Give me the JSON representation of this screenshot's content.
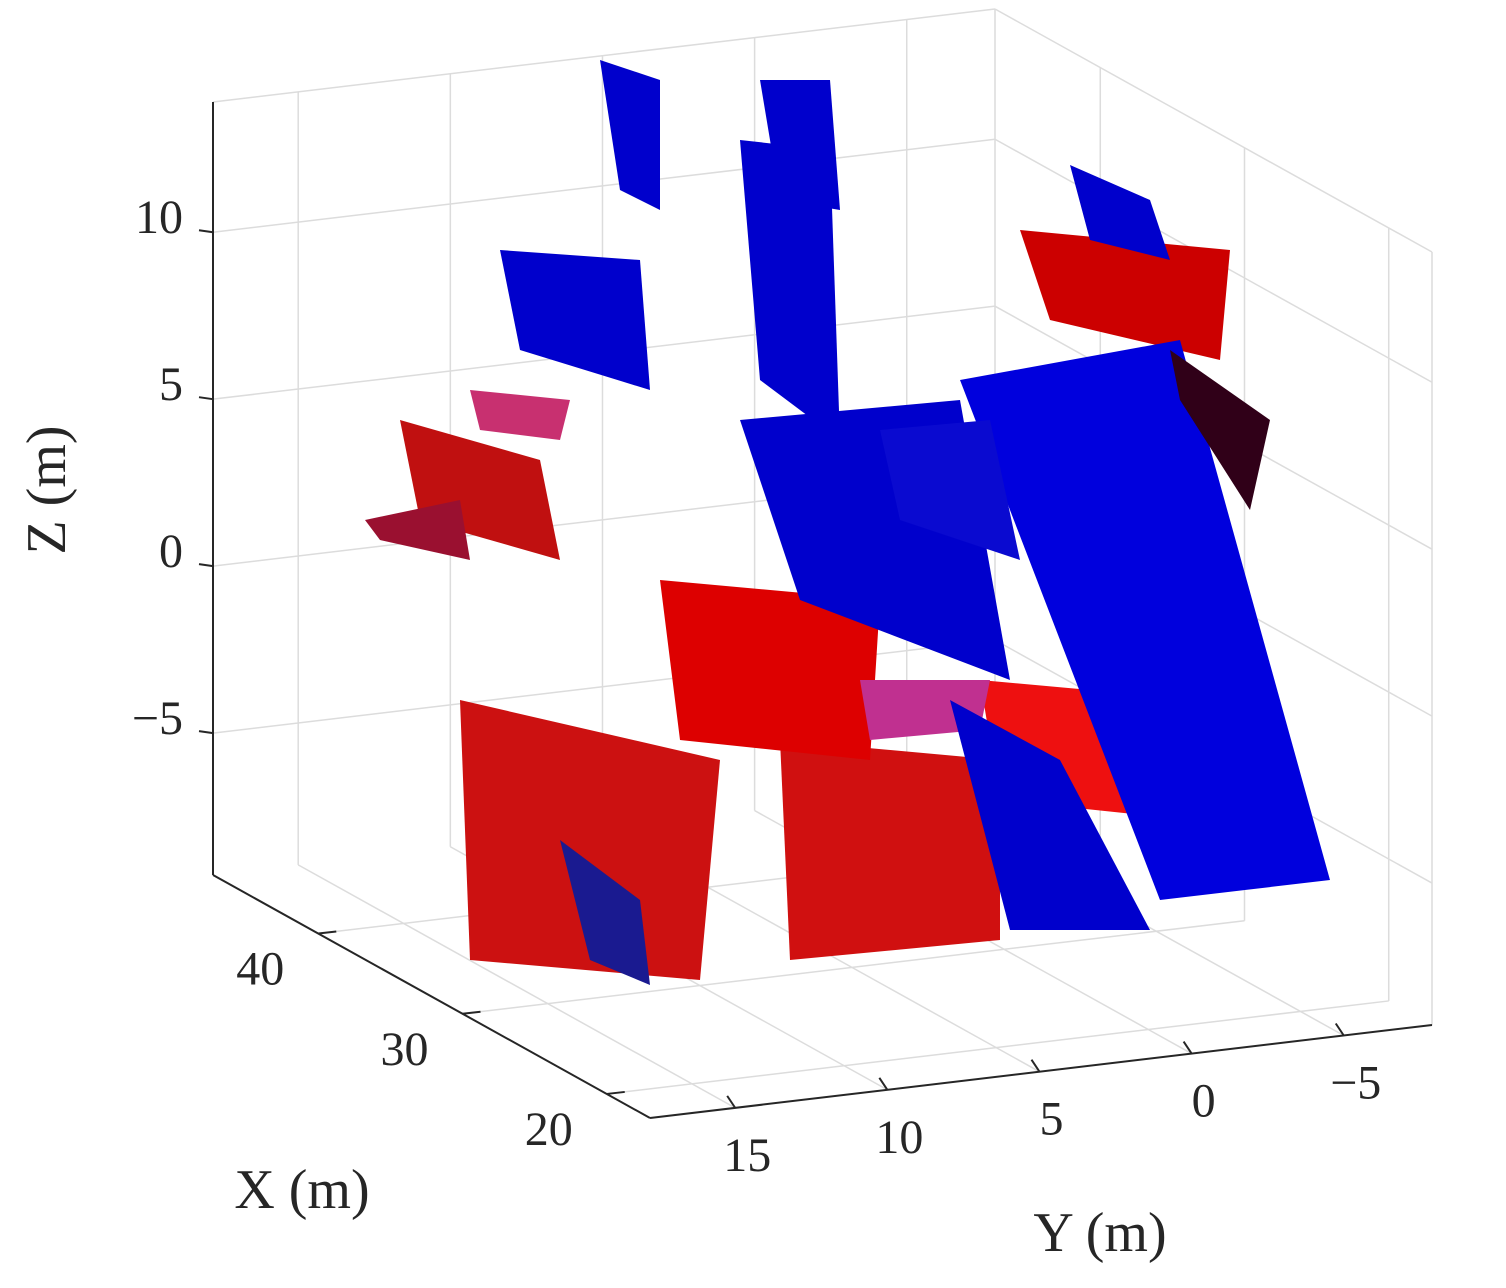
{
  "chart_data": {
    "type": "scatter3d",
    "xlabel": "X (m)",
    "ylabel": "Y (m)",
    "zlabel": "Z (m)",
    "xlim": [
      17,
      47.3
    ],
    "ylim": [
      17.8,
      -7.9
    ],
    "zlim": [
      -9.25,
      13.9
    ],
    "xticks": [
      20,
      30,
      40
    ],
    "yticks": [
      15,
      10,
      5,
      0,
      {
        "value": -5,
        "label": "−5"
      }
    ],
    "zticks": [
      {
        "value": -5,
        "label": "−5"
      },
      0,
      5,
      10
    ],
    "grid": true
  }
}
